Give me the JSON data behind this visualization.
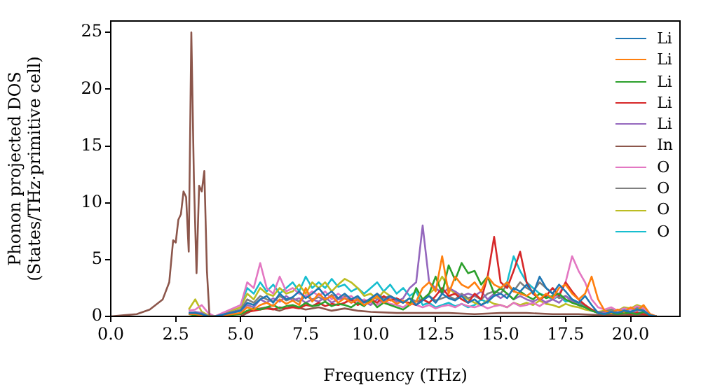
{
  "chart_data": {
    "type": "line",
    "xlabel": "Frequency (THz)",
    "ylabel": "Phonon projected DOS\n(States/THz·primitive cell)",
    "xlim": [
      0,
      21.9
    ],
    "ylim": [
      0,
      26
    ],
    "xticks": [
      {
        "value": 0,
        "label": "0.0"
      },
      {
        "value": 2.5,
        "label": "2.5"
      },
      {
        "value": 5,
        "label": "5.0"
      },
      {
        "value": 7.5,
        "label": "7.5"
      },
      {
        "value": 10,
        "label": "10.0"
      },
      {
        "value": 12.5,
        "label": "12.5"
      },
      {
        "value": 15,
        "label": "15.0"
      },
      {
        "value": 17.5,
        "label": "17.5"
      },
      {
        "value": 20,
        "label": "20.0"
      }
    ],
    "yticks": [
      0,
      5,
      10,
      15,
      20,
      25
    ],
    "legend": "top right",
    "grid": false,
    "x": [
      3,
      3.25,
      3.5,
      3.75,
      4,
      5,
      5.25,
      5.5,
      5.75,
      6,
      6.25,
      6.5,
      6.75,
      7,
      7.25,
      7.5,
      7.75,
      8,
      8.25,
      8.5,
      8.75,
      9,
      9.25,
      9.5,
      9.75,
      10,
      10.25,
      10.5,
      10.75,
      11,
      11.25,
      11.5,
      11.75,
      12,
      12.25,
      12.5,
      12.75,
      13,
      13.25,
      13.5,
      13.75,
      14,
      14.25,
      14.5,
      14.75,
      15,
      15.25,
      15.5,
      15.75,
      16,
      16.25,
      16.5,
      16.75,
      17,
      17.25,
      17.5,
      17.75,
      18,
      18.25,
      18.5,
      18.75,
      19,
      19.25,
      19.5,
      19.75,
      20,
      20.25,
      20.5,
      20.75,
      21
    ],
    "series": [
      {
        "name": "Li",
        "color": "#1f77b4",
        "values": [
          0.3,
          0.3,
          0.2,
          0,
          0,
          0.5,
          1.2,
          1.0,
          1.5,
          1.8,
          1.2,
          2.0,
          1.5,
          1.7,
          2.2,
          1.6,
          2.0,
          2.5,
          1.8,
          2.2,
          1.6,
          2.0,
          1.5,
          1.8,
          1.2,
          1.6,
          2.0,
          1.4,
          1.8,
          1.5,
          1.2,
          1.6,
          1.0,
          1.4,
          1.8,
          1.2,
          2.0,
          1.6,
          1.4,
          1.8,
          1.2,
          1.5,
          1.0,
          1.3,
          1.8,
          2.0,
          1.6,
          2.5,
          2.2,
          2.8,
          2.0,
          3.5,
          2.5,
          2.0,
          2.8,
          2.2,
          1.5,
          1.2,
          1.8,
          1.0,
          0.3,
          0.2,
          0.4,
          0.3,
          0.5,
          0.4,
          0.6,
          0.5,
          0.1,
          0
        ]
      },
      {
        "name": "Li",
        "color": "#ff7f0e",
        "values": [
          0.2,
          0.2,
          0.1,
          0,
          0,
          0.3,
          0.8,
          0.6,
          1.0,
          1.2,
          0.9,
          1.5,
          1.1,
          1.4,
          1.0,
          2.5,
          1.3,
          2.0,
          1.5,
          1.8,
          1.2,
          1.6,
          1.2,
          1.5,
          1.0,
          1.3,
          1.8,
          1.2,
          1.5,
          1.1,
          1.4,
          1.0,
          1.3,
          2.5,
          3.0,
          2.2,
          5.3,
          2.0,
          3.5,
          2.8,
          2.5,
          3.0,
          2.2,
          3.5,
          2.8,
          2.5,
          3.0,
          2.2,
          2.0,
          1.8,
          2.2,
          1.5,
          2.0,
          1.6,
          2.5,
          2.8,
          2.0,
          1.5,
          2.0,
          3.5,
          1.5,
          0.5,
          0.3,
          0.6,
          0.4,
          0.8,
          0.5,
          1.0,
          0.2,
          0
        ]
      },
      {
        "name": "Li",
        "color": "#2ca02c",
        "values": [
          0.2,
          0.1,
          0.1,
          0,
          0,
          0.2,
          0.5,
          0.7,
          0.6,
          0.8,
          1.0,
          0.7,
          0.9,
          1.0,
          0.8,
          1.2,
          0.9,
          1.0,
          1.3,
          0.9,
          1.1,
          1.0,
          0.8,
          1.2,
          0.9,
          1.5,
          0.8,
          1.2,
          1.0,
          0.8,
          0.6,
          1.0,
          2.5,
          1.5,
          2.0,
          3.5,
          2.0,
          4.5,
          3.2,
          4.7,
          3.8,
          4.0,
          2.8,
          3.5,
          2.0,
          2.5,
          2.0,
          1.5,
          2.2,
          1.8,
          1.5,
          2.0,
          1.6,
          1.8,
          2.0,
          1.5,
          1.2,
          1.0,
          0.8,
          0.5,
          0.3,
          0.2,
          0.3,
          0.2,
          0.3,
          0.3,
          0.2,
          0.4,
          0.1,
          0
        ]
      },
      {
        "name": "Li",
        "color": "#d62728",
        "values": [
          null,
          null,
          null,
          null,
          null,
          0.2,
          0.4,
          0.5,
          0.6,
          0.7,
          0.6,
          0.8,
          0.7,
          0.8,
          0.7,
          1.0,
          0.9,
          1.2,
          0.9,
          1.1,
          1.0,
          1.2,
          1.5,
          1.0,
          1.3,
          1.5,
          1.2,
          1.8,
          1.4,
          1.6,
          1.3,
          1.2,
          1.0,
          1.5,
          1.2,
          1.8,
          2.5,
          1.8,
          2.0,
          1.5,
          1.2,
          2.0,
          1.5,
          3.5,
          7.0,
          3.0,
          2.5,
          4.0,
          5.7,
          3.0,
          2.0,
          1.5,
          1.8,
          2.5,
          1.8,
          3.0,
          2.2,
          1.5,
          1.0,
          0.6,
          0.3,
          0.2,
          0.3,
          0.2,
          0.3,
          0.2,
          0.3,
          0.2,
          0.1,
          0
        ]
      },
      {
        "name": "Li",
        "color": "#9467bd",
        "values": [
          0.3,
          0.4,
          0.3,
          0,
          0,
          0.5,
          1.0,
          0.8,
          1.5,
          1.2,
          1.6,
          1.3,
          1.8,
          1.4,
          1.6,
          1.2,
          1.5,
          1.3,
          1.7,
          1.2,
          1.5,
          1.6,
          1.2,
          1.5,
          1.3,
          1.0,
          1.5,
          1.2,
          1.7,
          1.3,
          1.6,
          2.5,
          3.0,
          8.0,
          3.0,
          2.5,
          2.0,
          2.5,
          2.2,
          1.8,
          2.0,
          1.8,
          2.2,
          1.5,
          2.0,
          1.6,
          2.0,
          1.5,
          1.8,
          1.5,
          1.3,
          1.6,
          1.2,
          1.5,
          1.2,
          1.8,
          1.3,
          1.0,
          0.8,
          0.5,
          0.3,
          0.3,
          0.4,
          0.3,
          0.4,
          0.3,
          0.4,
          0.3,
          0.1,
          0
        ]
      },
      {
        "name": "In",
        "color": "#8c564b",
        "x": [
          0,
          0.5,
          1,
          1.5,
          2,
          2.25,
          2.4,
          2.5,
          2.6,
          2.7,
          2.8,
          2.9,
          3.0,
          3.1,
          3.2,
          3.3,
          3.4,
          3.5,
          3.6,
          3.7,
          3.8,
          5,
          5.5,
          6,
          6.5,
          7,
          7.5,
          8,
          8.5,
          9,
          9.5,
          10,
          11,
          12,
          13,
          14,
          15,
          16,
          17,
          18,
          19,
          20,
          20.5,
          21
        ],
        "values": [
          0,
          0.1,
          0.2,
          0.6,
          1.5,
          3,
          6.7,
          6.5,
          8.5,
          9,
          11,
          10.5,
          5.7,
          25,
          12,
          3.8,
          11.5,
          11,
          12.8,
          4,
          0,
          0,
          0.6,
          0.8,
          0.5,
          0.9,
          0.6,
          0.8,
          0.5,
          0.7,
          0.5,
          0.4,
          0.3,
          0.3,
          0.3,
          0.2,
          0.3,
          0.3,
          0.2,
          0.2,
          0.1,
          0.1,
          0.1,
          0
        ]
      },
      {
        "name": "O",
        "color": "#e377c2",
        "values": [
          0.5,
          0.6,
          1.0,
          0.3,
          0,
          1.0,
          3.0,
          2.5,
          4.7,
          2.5,
          2.0,
          3.5,
          2.2,
          2.5,
          2.0,
          1.8,
          2.2,
          1.8,
          2.2,
          1.5,
          2.0,
          1.6,
          1.8,
          1.3,
          1.5,
          1.2,
          1.0,
          1.4,
          1.1,
          1.0,
          0.8,
          1.2,
          1.0,
          0.8,
          1.0,
          0.7,
          0.9,
          1.0,
          0.8,
          1.1,
          0.9,
          0.8,
          1.0,
          0.7,
          0.9,
          1.0,
          0.8,
          1.2,
          0.9,
          1.0,
          1.2,
          0.9,
          1.3,
          1.5,
          2.0,
          3.0,
          5.3,
          4.0,
          3.0,
          1.5,
          0.8,
          0.6,
          0.8,
          0.5,
          0.7,
          0.6,
          0.9,
          0.7,
          0.2,
          0
        ]
      },
      {
        "name": "O",
        "color": "#7f7f7f",
        "values": [
          0.3,
          0.3,
          0.2,
          0,
          0,
          0.6,
          1.5,
          1.2,
          1.8,
          1.5,
          1.3,
          1.8,
          1.4,
          1.6,
          1.3,
          1.8,
          1.5,
          1.7,
          1.4,
          1.9,
          1.5,
          1.8,
          1.4,
          1.6,
          1.3,
          1.5,
          2.0,
          1.6,
          1.8,
          1.4,
          1.2,
          1.6,
          1.3,
          1.5,
          1.8,
          1.4,
          1.6,
          1.8,
          1.5,
          2.0,
          1.6,
          1.8,
          1.5,
          2.0,
          2.2,
          2.0,
          2.8,
          2.2,
          3.0,
          2.5,
          2.2,
          3.0,
          2.5,
          2.0,
          1.6,
          1.8,
          1.4,
          1.2,
          1.0,
          0.6,
          0.4,
          0.4,
          0.6,
          0.5,
          0.7,
          0.6,
          0.8,
          0.6,
          0.1,
          0
        ]
      },
      {
        "name": "O",
        "color": "#bcbd22",
        "values": [
          0.6,
          1.5,
          0.4,
          0.1,
          0,
          0.8,
          2.0,
          1.5,
          2.5,
          2.0,
          1.8,
          2.5,
          2.0,
          2.2,
          2.8,
          2.0,
          3.0,
          2.5,
          3.0,
          2.2,
          2.8,
          3.3,
          3.0,
          2.5,
          1.8,
          2.0,
          1.5,
          2.2,
          1.8,
          1.5,
          1.2,
          1.6,
          1.3,
          1.5,
          2.0,
          2.5,
          3.5,
          2.5,
          2.0,
          1.8,
          1.5,
          1.2,
          1.0,
          1.4,
          1.1,
          1.0,
          0.8,
          1.2,
          1.0,
          1.2,
          1.0,
          1.4,
          1.1,
          1.0,
          0.8,
          1.1,
          0.9,
          0.8,
          0.6,
          0.5,
          0.4,
          0.5,
          0.6,
          0.5,
          0.8,
          0.7,
          1.0,
          0.8,
          0.1,
          0
        ]
      },
      {
        "name": "O",
        "color": "#17becf",
        "values": [
          null,
          null,
          null,
          null,
          null,
          1.0,
          2.5,
          2.0,
          3.0,
          2.2,
          2.8,
          2.0,
          2.5,
          3.0,
          2.2,
          3.5,
          2.5,
          3.0,
          2.5,
          3.3,
          2.6,
          2.8,
          2.2,
          2.5,
          2.0,
          2.5,
          3.0,
          2.2,
          2.8,
          2.0,
          2.5,
          1.8,
          2.2,
          1.0,
          1.2,
          0.8,
          1.0,
          1.2,
          0.9,
          1.1,
          0.8,
          1.0,
          1.5,
          1.2,
          2.0,
          2.5,
          3.0,
          5.3,
          4.0,
          3.0,
          2.5,
          2.0,
          1.8,
          1.5,
          1.8,
          1.3,
          1.5,
          1.2,
          0.9,
          0.6,
          0.3,
          0.3,
          0.5,
          0.4,
          0.6,
          0.4,
          0.7,
          0.5,
          null,
          null
        ]
      }
    ]
  }
}
